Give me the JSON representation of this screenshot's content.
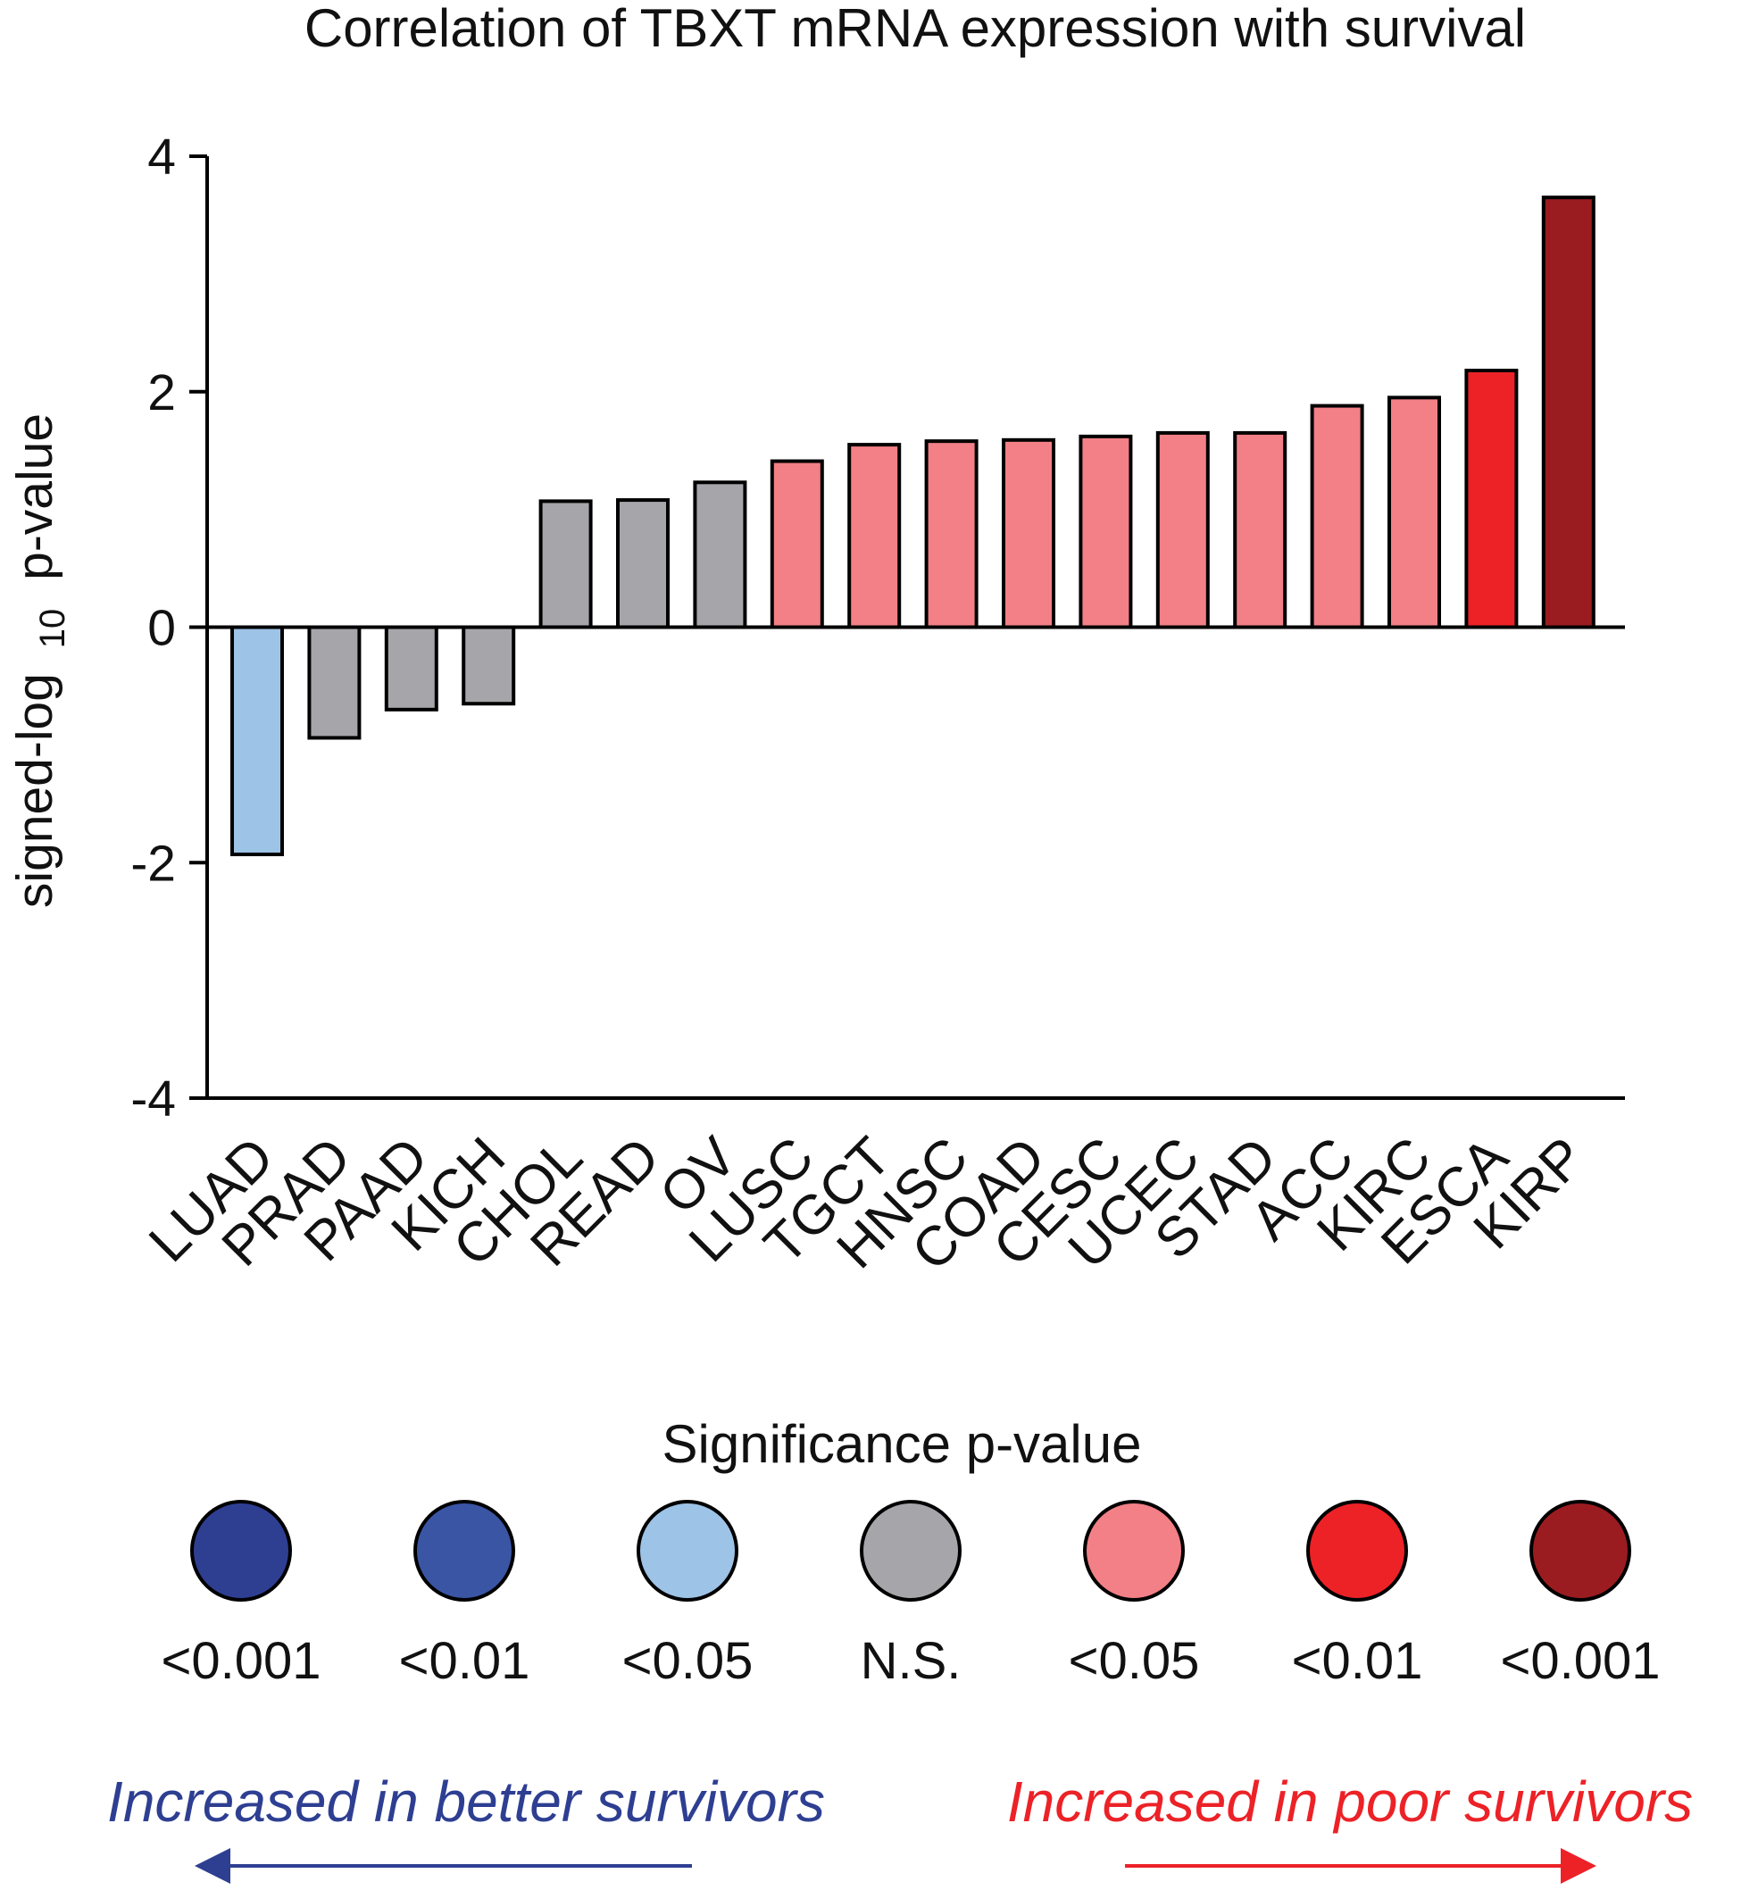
{
  "chart_data": {
    "type": "bar",
    "title": "Correlation of TBXT mRNA expression with survival",
    "ylabel": "signed-log",
    "ylabel_subscript": "10",
    "ylabel_suffix": "p-value",
    "xlabel": "",
    "ylim": [
      -4,
      4
    ],
    "yticks": [
      -4,
      -2,
      0,
      2,
      4
    ],
    "ytick_labels": [
      "-4",
      "-2",
      "0",
      "2",
      "4"
    ],
    "grid": false,
    "categories": [
      "LUAD",
      "PRAD",
      "PAAD",
      "KICH",
      "CHOL",
      "READ",
      "OV",
      "LUSC",
      "TGCT",
      "HNSC",
      "COAD",
      "CESC",
      "UCEC",
      "STAD",
      "ACC",
      "KIRC",
      "ESCA",
      "KIRP"
    ],
    "values": [
      -1.93,
      -0.94,
      -0.7,
      -0.65,
      1.07,
      1.08,
      1.23,
      1.41,
      1.55,
      1.58,
      1.59,
      1.62,
      1.65,
      1.65,
      1.88,
      1.95,
      2.18,
      3.65
    ],
    "significance": [
      "neg_0.05",
      "ns",
      "ns",
      "ns",
      "ns",
      "ns",
      "ns",
      "pos_0.05",
      "pos_0.05",
      "pos_0.05",
      "pos_0.05",
      "pos_0.05",
      "pos_0.05",
      "pos_0.05",
      "pos_0.05",
      "pos_0.05",
      "pos_0.01",
      "pos_0.001"
    ],
    "legend": {
      "title": "Significance p-value",
      "placement": "bottom",
      "items": [
        {
          "key": "neg_0.001",
          "label": "<0.001",
          "color": "#2e3f92"
        },
        {
          "key": "neg_0.01",
          "label": "<0.01",
          "color": "#3a55a4"
        },
        {
          "key": "neg_0.05",
          "label": "<0.05",
          "color": "#9dc3e6"
        },
        {
          "key": "ns",
          "label": "N.S.",
          "color": "#a5a5aa"
        },
        {
          "key": "pos_0.05",
          "label": "<0.05",
          "color": "#f28086"
        },
        {
          "key": "pos_0.01",
          "label": "<0.01",
          "color": "#ec2227"
        },
        {
          "key": "pos_0.001",
          "label": "<0.001",
          "color": "#9b1c20"
        }
      ]
    },
    "annotations": [
      {
        "text": "Increased in better survivors",
        "color": "#2e3f92",
        "direction": "left"
      },
      {
        "text": "Increased in poor survivors",
        "color": "#ec2227",
        "direction": "right"
      }
    ]
  }
}
